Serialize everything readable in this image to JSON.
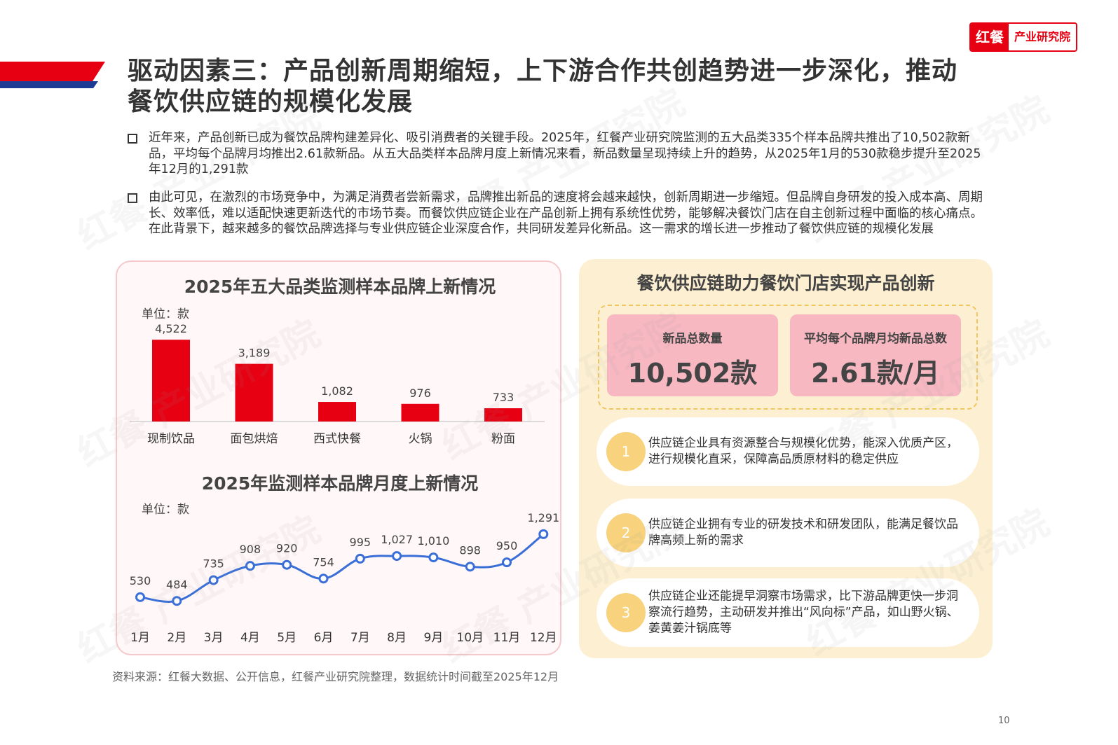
{
  "logo": {
    "brand": "红餐",
    "name": "产业研究院"
  },
  "watermark": "红餐 产业研究院",
  "title": "驱动因素三：产品创新周期缩短，上下游合作共创趋势进一步深化，推动餐饮供应链的规模化发展",
  "bullets": [
    "近年来，产品创新已成为餐饮品牌构建差异化、吸引消费者的关键手段。2025年，红餐产业研究院监测的五大品类335个样本品牌共推出了10,502款新品，平均每个品牌月均推出2.61款新品。从五大品类样本品牌月度上新情况来看，新品数量呈现持续上升的趋势，从2025年1月的530款稳步提升至2025年12月的1,291款",
    "由此可见，在激烈的市场竞争中，为满足消费者尝新需求，品牌推出新品的速度将会越来越快，创新周期进一步缩短。但品牌自身研发的投入成本高、周期长、效率低，难以适配快速更新迭代的市场节奏。而餐饮供应链企业在产品创新上拥有系统性优势，能够解决餐饮门店在自主创新过程中面临的核心痛点。在此背景下，越来越多的餐饮品牌选择与专业供应链企业深度合作，共同研发差异化新品。这一需求的增长进一步推动了餐饮供应链的规模化发展"
  ],
  "chart_data": [
    {
      "type": "bar",
      "title": "2025年五大品类监测样本品牌上新情况",
      "unit": "单位：款",
      "categories": [
        "现制饮品",
        "面包烘焙",
        "西式快餐",
        "火锅",
        "粉面"
      ],
      "values": [
        4522,
        3189,
        1082,
        976,
        733
      ],
      "labels": [
        "4,522",
        "3,189",
        "1,082",
        "976",
        "733"
      ],
      "color": "#e60012",
      "ylim": [
        0,
        4800
      ]
    },
    {
      "type": "line",
      "title": "2025年监测样本品牌月度上新情况",
      "unit": "单位：款",
      "categories": [
        "1月",
        "2月",
        "3月",
        "4月",
        "5月",
        "6月",
        "7月",
        "8月",
        "9月",
        "10月",
        "11月",
        "12月"
      ],
      "values": [
        530,
        484,
        735,
        908,
        920,
        754,
        995,
        1027,
        1010,
        898,
        950,
        1291
      ],
      "labels": [
        "530",
        "484",
        "735",
        "908",
        "920",
        "754",
        "995",
        "1,027",
        "1,010",
        "898",
        "950",
        "1,291"
      ],
      "color": "#3a6fd8",
      "ylim": [
        300,
        1400
      ]
    }
  ],
  "right": {
    "title": "餐饮供应链助力餐饮门店实现产品创新",
    "stats": [
      {
        "label": "新品总数量",
        "value": "10,502款"
      },
      {
        "label": "平均每个品牌月均新品总数",
        "value": "2.61款/月"
      }
    ],
    "points": [
      {
        "num": "1",
        "text": "供应链企业具有资源整合与规模化优势，能深入优质产区，进行规模化直采，保障高品质原材料的稳定供应"
      },
      {
        "num": "2",
        "text": "供应链企业拥有专业的研发技术和研发团队，能满足餐饮品牌高频上新的需求"
      },
      {
        "num": "3",
        "text": "供应链企业还能提早洞察市场需求，比下游品牌更快一步洞察流行趋势，主动研发并推出“风向标”产品，如山野火锅、姜黄姜汁锅底等"
      }
    ]
  },
  "source": "资料来源：红餐大数据、公开信息，红餐产业研究院整理，数据统计时间截至2025年12月",
  "page_number": "10"
}
